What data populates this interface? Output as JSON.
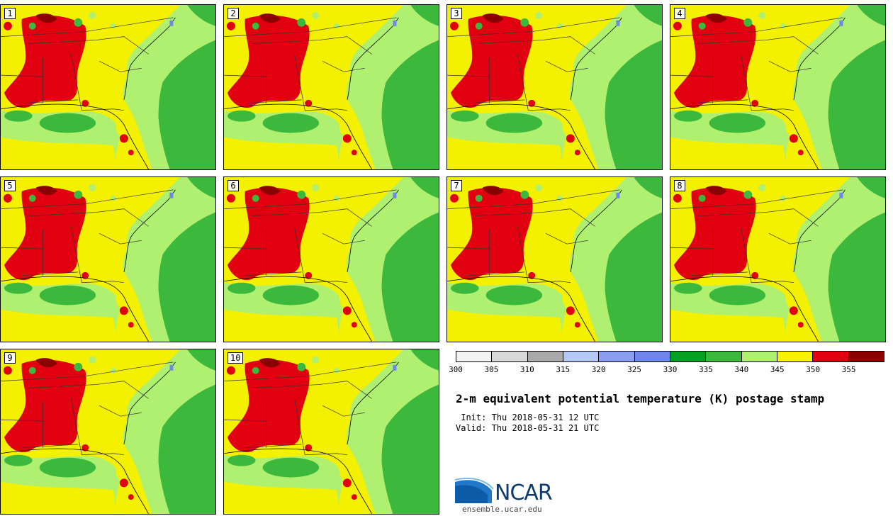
{
  "panels": [
    {
      "number": "1"
    },
    {
      "number": "2"
    },
    {
      "number": "3"
    },
    {
      "number": "4"
    },
    {
      "number": "5"
    },
    {
      "number": "6"
    },
    {
      "number": "7"
    },
    {
      "number": "8"
    },
    {
      "number": "9"
    },
    {
      "number": "10"
    }
  ],
  "colorbar": {
    "colors": [
      "#f4f4f4",
      "#d9d9d9",
      "#a9a9a9",
      "#b4c8f6",
      "#8a9ef0",
      "#6f86ea",
      "#08a024",
      "#3cb83c",
      "#b0f070",
      "#f7f200",
      "#e00010",
      "#8b0000"
    ],
    "ticks": [
      "300",
      "305",
      "310",
      "315",
      "320",
      "325",
      "330",
      "335",
      "340",
      "345",
      "350",
      "355"
    ]
  },
  "info": {
    "title": "2-m equivalent potential temperature (K) postage stamp",
    "init": " Init: Thu 2018-05-31 12 UTC",
    "valid": "Valid: Thu 2018-05-31 21 UTC"
  },
  "logo": {
    "text": "NCAR",
    "url": "ensemble.ucar.edu"
  }
}
